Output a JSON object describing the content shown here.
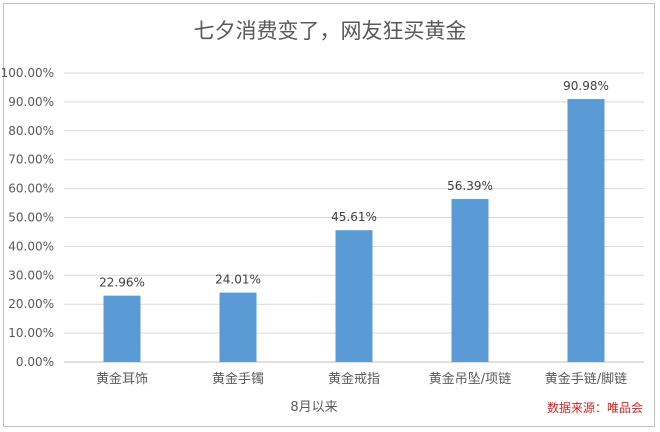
{
  "chart_data": {
    "type": "bar",
    "title": "七夕消费变了，网友狂买黄金",
    "categories": [
      "黄金耳饰",
      "黄金手镯",
      "黄金戒指",
      "黄金吊坠/项链",
      "黄金手链/脚链"
    ],
    "values": [
      22.96,
      24.01,
      45.61,
      56.39,
      90.98
    ],
    "value_labels": [
      "22.96%",
      "24.01%",
      "45.61%",
      "56.39%",
      "90.98%"
    ],
    "xlabel": "8月以来",
    "ylabel": "",
    "ylim": [
      0,
      100
    ],
    "yticks": [
      "0.00%",
      "10.00%",
      "20.00%",
      "30.00%",
      "40.00%",
      "50.00%",
      "60.00%",
      "70.00%",
      "80.00%",
      "90.00%",
      "100.00%"
    ],
    "grid": true,
    "legend": "none",
    "bar_color": "#5b9bd5",
    "source": "数据来源：唯品会",
    "source_color": "#e02020"
  }
}
